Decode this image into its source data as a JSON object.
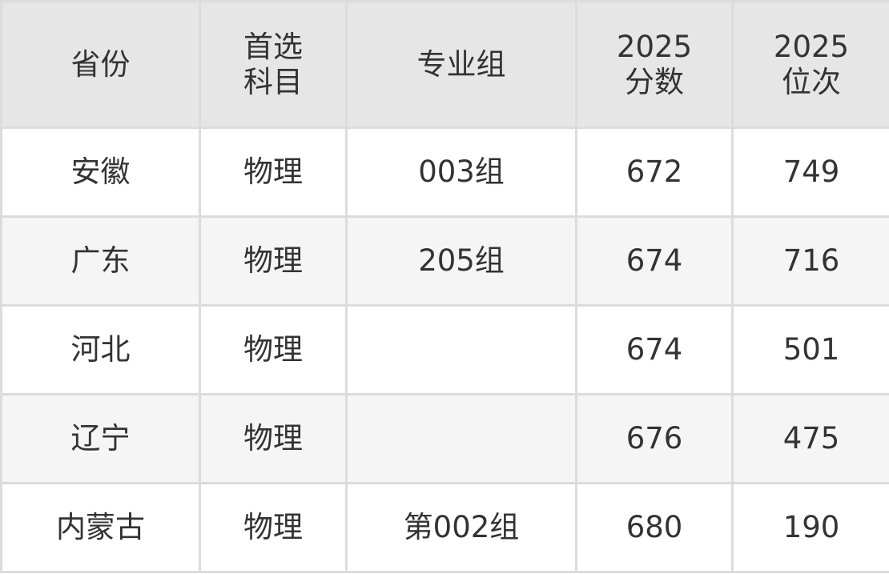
{
  "table": {
    "headers": [
      {
        "line1": "省份",
        "line2": ""
      },
      {
        "line1": "首选",
        "line2": "科目"
      },
      {
        "line1": "专业组",
        "line2": ""
      },
      {
        "line1": "2025",
        "line2": "分数"
      },
      {
        "line1": "2025",
        "line2": "位次"
      }
    ],
    "rows": [
      [
        "安徽",
        "物理",
        "003组",
        "672",
        "749"
      ],
      [
        "广东",
        "物理",
        "205组",
        "674",
        "716"
      ],
      [
        "河北",
        "物理",
        "",
        "674",
        "501"
      ],
      [
        "辽宁",
        "物理",
        "",
        "676",
        "475"
      ],
      [
        "内蒙古",
        "物理",
        "第002组",
        "680",
        "190"
      ]
    ]
  }
}
